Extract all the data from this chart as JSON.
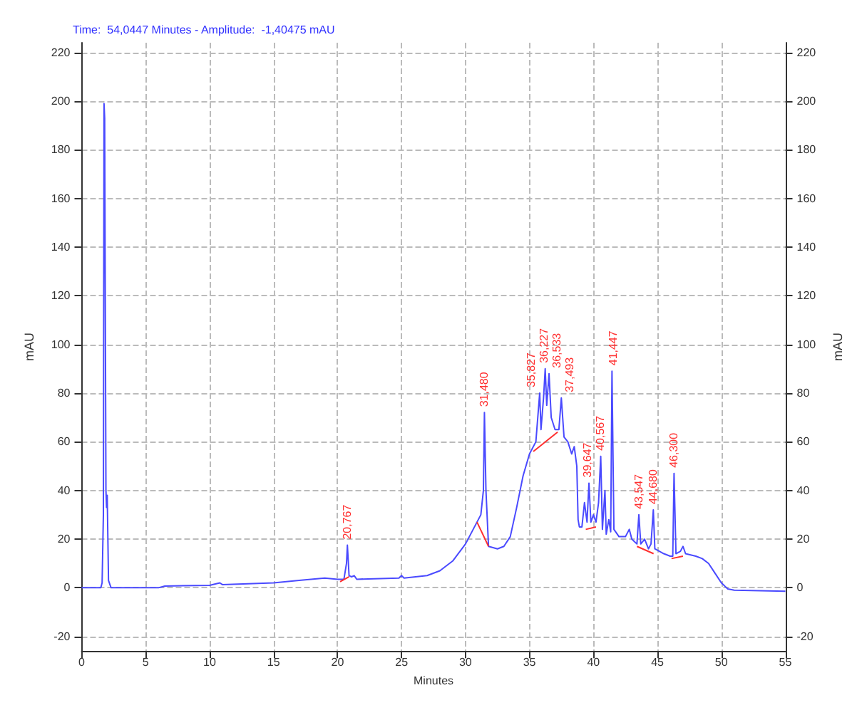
{
  "chart_data": {
    "type": "line",
    "xlabel": "Minutes",
    "ylabel": "mAU",
    "y2label": "mAU",
    "annotations": [
      "Time:  54,0447 Minutes - Amplitude:  -1,40475 mAU",
      {
        "text": "20,767",
        "x": 20.767,
        "y": 17.5
      },
      {
        "text": "31,480",
        "x": 31.48,
        "y": 72
      },
      {
        "text": "35,827",
        "x": 35.827,
        "y": 80
      },
      {
        "text": "36,227",
        "x": 36.227,
        "y": 90
      },
      {
        "text": "36,533",
        "x": 36.533,
        "y": 88
      },
      {
        "text": "37,493",
        "x": 37.493,
        "y": 78
      },
      {
        "text": "39,647",
        "x": 39.647,
        "y": 43
      },
      {
        "text": "40,567",
        "x": 40.567,
        "y": 54
      },
      {
        "text": "41,447",
        "x": 41.447,
        "y": 89
      },
      {
        "text": "43,547",
        "x": 43.547,
        "y": 30
      },
      {
        "text": "44,680",
        "x": 44.68,
        "y": 32
      },
      {
        "text": "46,300",
        "x": 46.3,
        "y": 47
      }
    ],
    "series": [
      {
        "color": "#4a4aff",
        "x": [
          0,
          1.5,
          1.6,
          1.7,
          1.75,
          1.8,
          1.85,
          1.9,
          1.95,
          2.0,
          2.1,
          2.3,
          6,
          6.5,
          10,
          10.8,
          11,
          15,
          17,
          19,
          20,
          20.5,
          20.7,
          20.77,
          20.9,
          21.1,
          21.3,
          21.5,
          24.8,
          25,
          25.2,
          27,
          28,
          29,
          30,
          30.9,
          31.2,
          31.4,
          31.48,
          31.6,
          31.8,
          32.5,
          33,
          33.5,
          34,
          34.5,
          35,
          35.5,
          35.8,
          35.9,
          36.1,
          36.23,
          36.35,
          36.53,
          36.7,
          37,
          37.3,
          37.49,
          37.7,
          38,
          38.3,
          38.5,
          38.7,
          38.8,
          38.9,
          39.1,
          39.3,
          39.5,
          39.65,
          39.8,
          40,
          40.2,
          40.4,
          40.57,
          40.7,
          40.9,
          41,
          41.2,
          41.35,
          41.45,
          41.6,
          42,
          42.5,
          42.8,
          43,
          43.4,
          43.55,
          43.7,
          44,
          44.3,
          44.5,
          44.68,
          44.8,
          45.5,
          46,
          46.2,
          46.3,
          46.45,
          46.8,
          47,
          47.2,
          48,
          48.5,
          49,
          49.5,
          50,
          50.5,
          51,
          55
        ],
        "values": [
          0,
          0,
          2,
          30,
          199,
          193,
          193,
          40,
          33,
          38,
          3,
          0,
          0,
          0.7,
          1,
          2,
          1.3,
          2,
          3,
          4,
          3.5,
          3.5,
          10,
          17.5,
          5,
          4.5,
          5,
          3.5,
          4,
          5,
          4,
          5,
          7,
          11,
          18,
          27,
          30,
          40,
          72,
          40,
          17,
          16,
          17,
          21,
          33,
          46,
          55,
          60,
          80,
          65,
          78,
          90,
          75,
          88,
          70,
          65,
          65,
          78,
          62,
          60,
          55,
          58,
          50,
          28,
          25,
          25,
          35,
          27,
          43,
          27,
          30,
          27,
          35,
          54,
          24,
          40,
          22,
          28,
          23,
          89,
          24,
          21,
          21,
          24,
          20,
          18,
          30,
          18,
          20,
          16,
          18,
          32,
          16,
          14,
          13,
          13,
          47,
          14,
          15,
          17,
          14,
          13,
          12,
          10,
          6,
          2,
          -0.5,
          -1,
          -1.4
        ]
      },
      {
        "color": "#ff3030",
        "x": [
          20.2,
          20.9,
          20.95,
          30.9,
          31.8,
          31.85,
          35.3,
          37.2,
          37.25,
          39.4,
          40.2,
          40.25,
          43.4,
          44.7,
          44.75,
          46.1,
          47.0
        ],
        "values": [
          2.5,
          4.5,
          null,
          27,
          17,
          null,
          56,
          64,
          null,
          24,
          25,
          null,
          17,
          14,
          null,
          12,
          13
        ]
      }
    ],
    "xlim": [
      0,
      55
    ],
    "xticks": [
      0,
      5,
      10,
      15,
      20,
      25,
      30,
      35,
      40,
      45,
      50,
      55
    ],
    "ylim": [
      -26,
      224
    ],
    "yticks": [
      -20,
      0,
      20,
      40,
      60,
      80,
      100,
      120,
      140,
      160,
      180,
      200,
      220
    ],
    "y2lim": [
      -26,
      224
    ],
    "y2ticks": [
      -20,
      0,
      20,
      40,
      60,
      80,
      100,
      120,
      140,
      160,
      180,
      200,
      220
    ],
    "grid": true,
    "marker": "none",
    "line_style": "solid"
  }
}
